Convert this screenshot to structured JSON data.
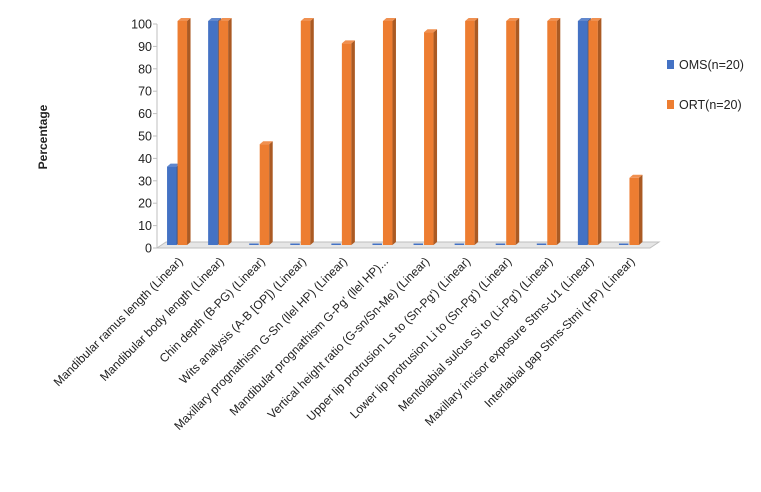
{
  "chart_data": {
    "type": "bar",
    "title": "",
    "xlabel": "",
    "ylabel": "Percentage",
    "ylim": [
      0,
      100
    ],
    "yticks": [
      0,
      10,
      20,
      30,
      40,
      50,
      60,
      70,
      80,
      90,
      100
    ],
    "grid": false,
    "legend_position": "right",
    "categories": [
      "Mandibular ramus length (Linear)",
      "Mandibular body length (Linear)",
      "Chin depth (B-PG) (Linear)",
      "Wits analysis (A-B [OP]) (Linear)",
      "Maxillary prognathism G-Sn (llel HP) (Linear)",
      "Mandibular prognathism G-Pg' (llel HP)...",
      "Vertical height ratio (G-sn/Sn-Me) (Linear)",
      "Upper lip protrusion Ls to (Sn-Pg') (Linear)",
      "Lower lip protrusion Li to (Sn-Pg') (Linear)",
      "Mentolabial sulcus Si to (Li-Pg') (Linear)",
      "Maxillary incisor exposure Stms-U1 (Linear)",
      "Interlabial gap Stms-Stmi (HP) (Linear)"
    ],
    "series": [
      {
        "name": "OMS(n=20)",
        "color": "#4472C4",
        "values": [
          35,
          100,
          0,
          0,
          0,
          0,
          0,
          0,
          0,
          0,
          100,
          0
        ]
      },
      {
        "name": "ORT(n=20)",
        "color": "#ED7D31",
        "values": [
          100,
          100,
          45,
          100,
          90,
          100,
          95,
          100,
          100,
          100,
          100,
          30
        ]
      }
    ]
  }
}
